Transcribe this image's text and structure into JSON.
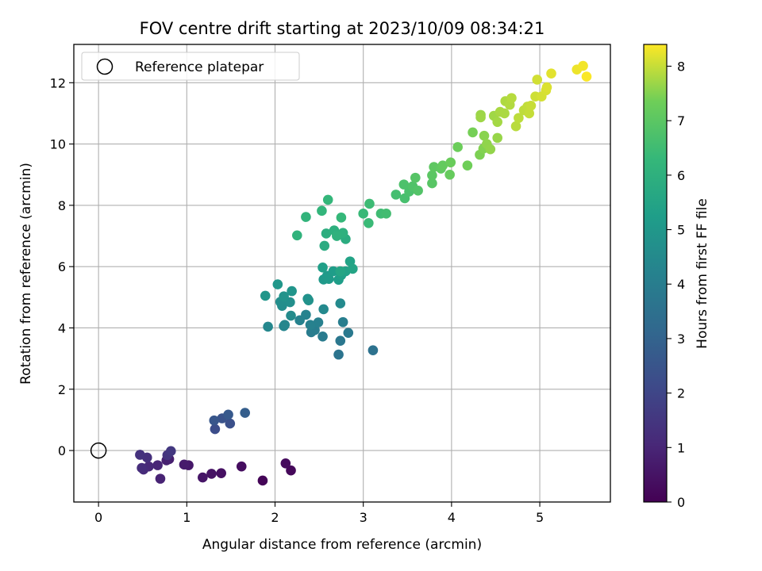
{
  "chart_data": {
    "type": "scatter",
    "title": "FOV centre drift starting at 2023/10/09 08:34:21",
    "xlabel": "Angular distance from reference (arcmin)",
    "ylabel": "Rotation from reference (arcmin)",
    "xlim": [
      -0.28,
      5.8
    ],
    "ylim": [
      -1.68,
      13.25
    ],
    "xticks": [
      0,
      1,
      2,
      3,
      4,
      5
    ],
    "yticks": [
      0,
      2,
      4,
      6,
      8,
      10,
      12
    ],
    "grid": true,
    "legend": {
      "entries": [
        "Reference platepar"
      ],
      "placement": "upper-left"
    },
    "colorbar": {
      "label": "Hours from first FF file",
      "colormap": "viridis",
      "range": [
        0,
        8.4
      ],
      "ticks": [
        0,
        1,
        2,
        3,
        4,
        5,
        6,
        7,
        8
      ]
    },
    "series": [
      {
        "name": "Reference platepar",
        "marker": "hollow-circle",
        "points": [
          {
            "x": 0,
            "y": 0
          }
        ]
      },
      {
        "marker": "filled-circle",
        "color_by": "hours",
        "points": [
          {
            "x": 1.86,
            "y": -0.98,
            "h": 0.1
          },
          {
            "x": 2.18,
            "y": -0.65,
            "h": 0.18
          },
          {
            "x": 2.12,
            "y": -0.42,
            "h": 0.25
          },
          {
            "x": 1.62,
            "y": -0.52,
            "h": 0.32
          },
          {
            "x": 1.39,
            "y": -0.74,
            "h": 0.4
          },
          {
            "x": 1.28,
            "y": -0.76,
            "h": 0.48
          },
          {
            "x": 1.18,
            "y": -0.88,
            "h": 0.55
          },
          {
            "x": 1.02,
            "y": -0.48,
            "h": 0.62
          },
          {
            "x": 0.97,
            "y": -0.46,
            "h": 0.7
          },
          {
            "x": 0.8,
            "y": -0.28,
            "h": 0.78
          },
          {
            "x": 0.77,
            "y": -0.32,
            "h": 0.85
          },
          {
            "x": 0.7,
            "y": -0.92,
            "h": 0.92
          },
          {
            "x": 0.67,
            "y": -0.48,
            "h": 1.0
          },
          {
            "x": 0.57,
            "y": -0.52,
            "h": 1.08
          },
          {
            "x": 0.51,
            "y": -0.62,
            "h": 1.15
          },
          {
            "x": 0.49,
            "y": -0.57,
            "h": 1.22
          },
          {
            "x": 0.55,
            "y": -0.23,
            "h": 1.3
          },
          {
            "x": 0.47,
            "y": -0.14,
            "h": 1.38
          },
          {
            "x": 0.78,
            "y": -0.15,
            "h": 1.45
          },
          {
            "x": 0.82,
            "y": -0.02,
            "h": 1.55
          },
          {
            "x": 1.32,
            "y": 0.7,
            "h": 2.25
          },
          {
            "x": 1.49,
            "y": 0.88,
            "h": 2.35
          },
          {
            "x": 1.4,
            "y": 1.05,
            "h": 2.45
          },
          {
            "x": 1.31,
            "y": 0.98,
            "h": 2.55
          },
          {
            "x": 1.47,
            "y": 1.17,
            "h": 2.65
          },
          {
            "x": 1.66,
            "y": 1.23,
            "h": 2.8
          },
          {
            "x": 3.11,
            "y": 3.27,
            "h": 3.55
          },
          {
            "x": 2.72,
            "y": 3.13,
            "h": 3.65
          },
          {
            "x": 2.74,
            "y": 3.58,
            "h": 3.75
          },
          {
            "x": 2.83,
            "y": 3.84,
            "h": 3.82
          },
          {
            "x": 2.54,
            "y": 3.72,
            "h": 3.9
          },
          {
            "x": 2.41,
            "y": 3.86,
            "h": 3.95
          },
          {
            "x": 2.45,
            "y": 3.93,
            "h": 4.0
          },
          {
            "x": 2.77,
            "y": 4.19,
            "h": 4.05
          },
          {
            "x": 2.49,
            "y": 4.18,
            "h": 4.1
          },
          {
            "x": 2.4,
            "y": 4.1,
            "h": 4.15
          },
          {
            "x": 2.28,
            "y": 4.25,
            "h": 4.2
          },
          {
            "x": 2.35,
            "y": 4.43,
            "h": 4.25
          },
          {
            "x": 2.1,
            "y": 4.06,
            "h": 4.3
          },
          {
            "x": 2.11,
            "y": 4.1,
            "h": 4.35
          },
          {
            "x": 1.92,
            "y": 4.04,
            "h": 4.4
          },
          {
            "x": 2.55,
            "y": 4.61,
            "h": 4.45
          },
          {
            "x": 2.74,
            "y": 4.8,
            "h": 4.5
          },
          {
            "x": 2.18,
            "y": 4.4,
            "h": 4.55
          },
          {
            "x": 2.08,
            "y": 4.72,
            "h": 4.6
          },
          {
            "x": 2.06,
            "y": 4.85,
            "h": 4.65
          },
          {
            "x": 2.17,
            "y": 4.84,
            "h": 4.7
          },
          {
            "x": 2.37,
            "y": 4.95,
            "h": 4.75
          },
          {
            "x": 2.38,
            "y": 4.9,
            "h": 4.8
          },
          {
            "x": 2.1,
            "y": 5.03,
            "h": 4.85
          },
          {
            "x": 2.19,
            "y": 5.2,
            "h": 4.9
          },
          {
            "x": 1.89,
            "y": 5.05,
            "h": 4.95
          },
          {
            "x": 2.03,
            "y": 5.42,
            "h": 5.0
          },
          {
            "x": 2.55,
            "y": 5.58,
            "h": 5.05
          },
          {
            "x": 2.59,
            "y": 5.7,
            "h": 5.1
          },
          {
            "x": 2.61,
            "y": 5.6,
            "h": 5.15
          },
          {
            "x": 2.66,
            "y": 5.85,
            "h": 5.2
          },
          {
            "x": 2.72,
            "y": 5.57,
            "h": 5.25
          },
          {
            "x": 2.54,
            "y": 5.97,
            "h": 5.3
          },
          {
            "x": 2.75,
            "y": 5.72,
            "h": 5.35
          },
          {
            "x": 2.8,
            "y": 5.85,
            "h": 5.4
          },
          {
            "x": 2.85,
            "y": 6.17,
            "h": 5.45
          },
          {
            "x": 2.88,
            "y": 5.93,
            "h": 5.5
          },
          {
            "x": 2.74,
            "y": 5.85,
            "h": 5.55
          },
          {
            "x": 2.56,
            "y": 6.68,
            "h": 5.8
          },
          {
            "x": 2.8,
            "y": 6.9,
            "h": 5.85
          },
          {
            "x": 2.58,
            "y": 7.08,
            "h": 5.9
          },
          {
            "x": 2.67,
            "y": 7.18,
            "h": 5.95
          },
          {
            "x": 2.77,
            "y": 7.1,
            "h": 6.0
          },
          {
            "x": 2.7,
            "y": 7.0,
            "h": 6.05
          },
          {
            "x": 2.25,
            "y": 7.02,
            "h": 6.1
          },
          {
            "x": 2.35,
            "y": 7.62,
            "h": 6.15
          },
          {
            "x": 2.53,
            "y": 7.82,
            "h": 6.2
          },
          {
            "x": 2.6,
            "y": 8.18,
            "h": 6.25
          },
          {
            "x": 2.75,
            "y": 7.6,
            "h": 6.3
          },
          {
            "x": 3.0,
            "y": 7.73,
            "h": 6.35
          },
          {
            "x": 3.06,
            "y": 7.42,
            "h": 6.4
          },
          {
            "x": 3.07,
            "y": 8.05,
            "h": 6.45
          },
          {
            "x": 3.2,
            "y": 7.73,
            "h": 6.5
          },
          {
            "x": 3.26,
            "y": 7.73,
            "h": 6.55
          },
          {
            "x": 3.37,
            "y": 8.35,
            "h": 6.6
          },
          {
            "x": 3.47,
            "y": 8.23,
            "h": 6.65
          },
          {
            "x": 3.52,
            "y": 8.45,
            "h": 6.7
          },
          {
            "x": 3.46,
            "y": 8.68,
            "h": 6.75
          },
          {
            "x": 3.56,
            "y": 8.62,
            "h": 6.8
          },
          {
            "x": 3.62,
            "y": 8.48,
            "h": 6.85
          },
          {
            "x": 3.59,
            "y": 8.9,
            "h": 6.9
          },
          {
            "x": 3.78,
            "y": 8.72,
            "h": 6.95
          },
          {
            "x": 3.78,
            "y": 8.98,
            "h": 7.0
          },
          {
            "x": 3.8,
            "y": 9.25,
            "h": 7.05
          },
          {
            "x": 3.88,
            "y": 9.2,
            "h": 7.1
          },
          {
            "x": 3.9,
            "y": 9.3,
            "h": 7.15
          },
          {
            "x": 3.98,
            "y": 9.0,
            "h": 7.2
          },
          {
            "x": 3.99,
            "y": 9.4,
            "h": 7.25
          },
          {
            "x": 4.07,
            "y": 9.9,
            "h": 7.3
          },
          {
            "x": 4.18,
            "y": 9.3,
            "h": 7.35
          },
          {
            "x": 4.24,
            "y": 10.38,
            "h": 7.4
          },
          {
            "x": 4.32,
            "y": 9.65,
            "h": 7.45
          },
          {
            "x": 4.36,
            "y": 9.85,
            "h": 7.5
          },
          {
            "x": 4.37,
            "y": 10.27,
            "h": 7.55
          },
          {
            "x": 4.4,
            "y": 10.0,
            "h": 7.6
          },
          {
            "x": 4.44,
            "y": 9.83,
            "h": 7.62
          },
          {
            "x": 4.52,
            "y": 10.2,
            "h": 7.65
          },
          {
            "x": 4.33,
            "y": 10.95,
            "h": 7.68
          },
          {
            "x": 4.33,
            "y": 10.87,
            "h": 7.7
          },
          {
            "x": 4.48,
            "y": 10.92,
            "h": 7.72
          },
          {
            "x": 4.52,
            "y": 10.72,
            "h": 7.75
          },
          {
            "x": 4.55,
            "y": 11.05,
            "h": 7.78
          },
          {
            "x": 4.6,
            "y": 11.0,
            "h": 7.8
          },
          {
            "x": 4.61,
            "y": 11.4,
            "h": 7.82
          },
          {
            "x": 4.66,
            "y": 11.28,
            "h": 7.85
          },
          {
            "x": 4.68,
            "y": 11.5,
            "h": 7.88
          },
          {
            "x": 4.73,
            "y": 10.58,
            "h": 7.9
          },
          {
            "x": 4.76,
            "y": 10.85,
            "h": 7.92
          },
          {
            "x": 4.82,
            "y": 11.1,
            "h": 7.94
          },
          {
            "x": 4.86,
            "y": 11.22,
            "h": 7.96
          },
          {
            "x": 4.88,
            "y": 11.0,
            "h": 7.98
          },
          {
            "x": 4.9,
            "y": 11.25,
            "h": 8.0
          },
          {
            "x": 4.95,
            "y": 11.55,
            "h": 8.05
          },
          {
            "x": 4.97,
            "y": 12.1,
            "h": 8.08
          },
          {
            "x": 5.02,
            "y": 11.55,
            "h": 8.1
          },
          {
            "x": 5.07,
            "y": 11.75,
            "h": 8.12
          },
          {
            "x": 5.08,
            "y": 11.85,
            "h": 8.15
          },
          {
            "x": 5.13,
            "y": 12.3,
            "h": 8.2
          },
          {
            "x": 5.42,
            "y": 12.43,
            "h": 8.28
          },
          {
            "x": 5.49,
            "y": 12.55,
            "h": 8.32
          },
          {
            "x": 5.53,
            "y": 12.2,
            "h": 8.38
          }
        ]
      }
    ]
  }
}
